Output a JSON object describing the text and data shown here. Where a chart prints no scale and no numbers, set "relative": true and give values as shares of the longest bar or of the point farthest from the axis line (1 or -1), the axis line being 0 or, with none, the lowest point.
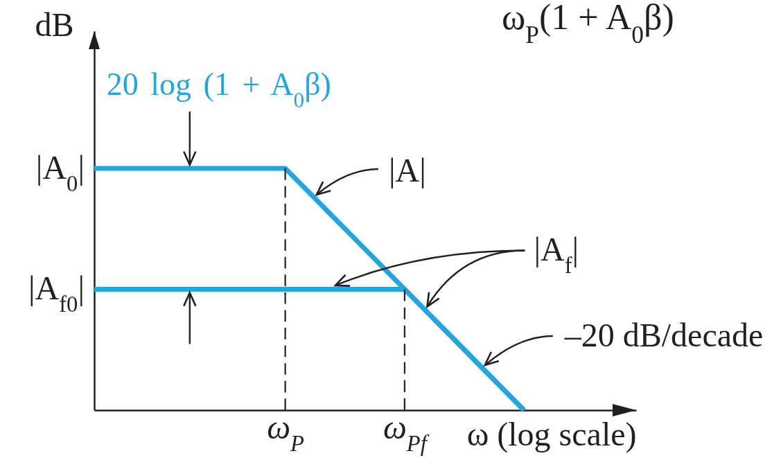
{
  "chart_data": {
    "type": "line",
    "relative": true,
    "xlabel": "ω (log scale)",
    "ylabel": "dB",
    "categories": [
      null,
      null,
      null,
      null,
      null,
      null,
      null,
      null,
      "ω$_{P}$",
      null,
      null,
      null,
      null,
      "ω$_{Pf}$",
      null,
      null,
      null,
      null,
      null
    ],
    "series": [
      {
        "name": "|A|",
        "color": "#22a6dc",
        "values": [
          1,
          1,
          1,
          1,
          1,
          1,
          1,
          1,
          1,
          0.9,
          0.8,
          0.7,
          0.6,
          0.5,
          0.4,
          0.3,
          0.2,
          0.1,
          0
        ]
      },
      {
        "name": "|A$_{f}$|",
        "color": "#22a6dc",
        "values": [
          0.5,
          0.5,
          0.5,
          0.5,
          0.5,
          0.5,
          0.5,
          0.5,
          0.5,
          0.5,
          0.5,
          0.5,
          0.5,
          0.5,
          0.4,
          0.3,
          0.2,
          0.1,
          0
        ]
      },
      {
        "color": "#231f20",
        "line_style": "dashed",
        "x": [
          "ω$_{P}$",
          "ω$_{P}$"
        ],
        "values": [
          0,
          1
        ]
      },
      {
        "color": "#231f20",
        "line_style": "dashed",
        "x": [
          "ω$_{Pf}$",
          "ω$_{Pf}$"
        ],
        "values": [
          0,
          0.5
        ]
      }
    ],
    "annotations": [
      "20 log (1 + A$_{0}$β)",
      "|A$_{0}$|",
      "|A$_{f0}$|",
      "–20 dB/decade",
      "ω$_{P}$(1 + A$_{0}$β)"
    ],
    "grid": false,
    "legend": false
  }
}
